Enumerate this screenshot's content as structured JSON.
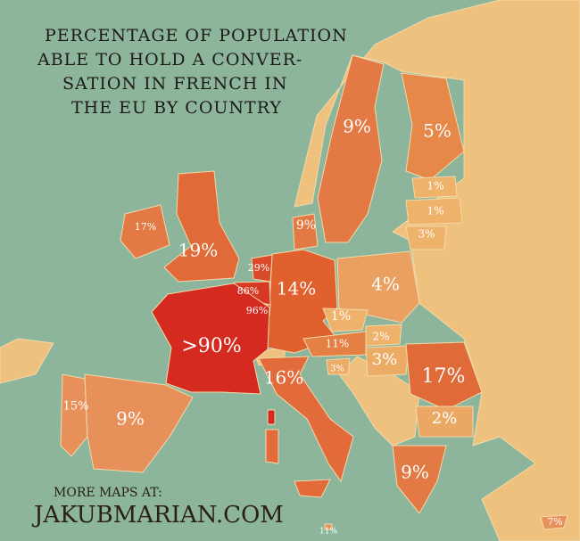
{
  "header": {
    "title_lines": [
      "PERCENTAGE OF POPULATION",
      "ABLE TO HOLD A CONVER-",
      "SATION IN FRENCH IN",
      "THE EU BY COUNTRY"
    ]
  },
  "labels": [
    "9%",
    "5%",
    "1%",
    "1%",
    "3%",
    "17%",
    "19%",
    "9%",
    "29%",
    "86%",
    "96%",
    "14%",
    "4%",
    "1%",
    ">90%",
    "11%",
    "2%",
    "3%",
    "3%",
    "17%",
    "16%",
    "2%",
    "15%",
    "9%",
    "9%",
    "11%",
    "7%"
  ],
  "footer": {
    "line1": "MORE MAPS AT:",
    "line2": "JAKUBMARIAN.COM"
  }
}
